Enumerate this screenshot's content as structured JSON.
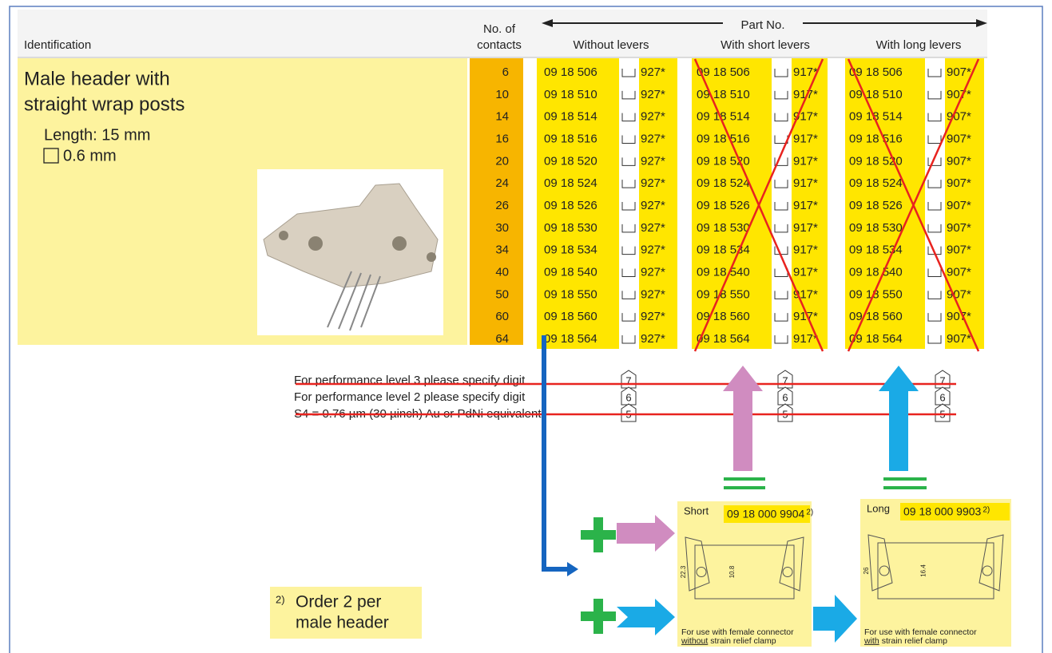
{
  "header": {
    "identification": "Identification",
    "contacts_label": [
      "No. of",
      "contacts"
    ],
    "part_no": "Part No.",
    "columns": [
      "Without levers",
      "With short levers",
      "With long levers"
    ]
  },
  "product": {
    "title_lines": [
      "Male header with",
      "straight wrap posts"
    ],
    "length": "Length: 15 mm",
    "wire": "0.6 mm"
  },
  "rows": [
    {
      "contacts": "6",
      "without": [
        "09 18 506",
        "927*"
      ],
      "short": [
        "09 18 506",
        "917*"
      ],
      "long": [
        "09 18 506",
        "907*"
      ]
    },
    {
      "contacts": "10",
      "without": [
        "09 18 510",
        "927*"
      ],
      "short": [
        "09 18 510",
        "917*"
      ],
      "long": [
        "09 18 510",
        "907*"
      ]
    },
    {
      "contacts": "14",
      "without": [
        "09 18 514",
        "927*"
      ],
      "short": [
        "09 18 514",
        "917*"
      ],
      "long": [
        "09 18 514",
        "907*"
      ]
    },
    {
      "contacts": "16",
      "without": [
        "09 18 516",
        "927*"
      ],
      "short": [
        "09 18 516",
        "917*"
      ],
      "long": [
        "09 18 516",
        "907*"
      ]
    },
    {
      "contacts": "20",
      "without": [
        "09 18 520",
        "927*"
      ],
      "short": [
        "09 18 520",
        "917*"
      ],
      "long": [
        "09 18 520",
        "907*"
      ]
    },
    {
      "contacts": "24",
      "without": [
        "09 18 524",
        "927*"
      ],
      "short": [
        "09 18 524",
        "917*"
      ],
      "long": [
        "09 18 524",
        "907*"
      ]
    },
    {
      "contacts": "26",
      "without": [
        "09 18 526",
        "927*"
      ],
      "short": [
        "09 18 526",
        "917*"
      ],
      "long": [
        "09 18 526",
        "907*"
      ]
    },
    {
      "contacts": "30",
      "without": [
        "09 18 530",
        "927*"
      ],
      "short": [
        "09 18 530",
        "917*"
      ],
      "long": [
        "09 18 530",
        "907*"
      ]
    },
    {
      "contacts": "34",
      "without": [
        "09 18 534",
        "927*"
      ],
      "short": [
        "09 18 534",
        "917*"
      ],
      "long": [
        "09 18 534",
        "907*"
      ]
    },
    {
      "contacts": "40",
      "without": [
        "09 18 540",
        "927*"
      ],
      "short": [
        "09 18 540",
        "917*"
      ],
      "long": [
        "09 18 540",
        "907*"
      ]
    },
    {
      "contacts": "50",
      "without": [
        "09 18 550",
        "927*"
      ],
      "short": [
        "09 18 550",
        "917*"
      ],
      "long": [
        "09 18 550",
        "907*"
      ]
    },
    {
      "contacts": "60",
      "without": [
        "09 18 560",
        "927*"
      ],
      "short": [
        "09 18 560",
        "917*"
      ],
      "long": [
        "09 18 560",
        "907*"
      ]
    },
    {
      "contacts": "64",
      "without": [
        "09 18 564",
        "927*"
      ],
      "short": [
        "09 18 564",
        "917*"
      ],
      "long": [
        "09 18 564",
        "907*"
      ]
    }
  ],
  "specs": [
    {
      "text": "For performance level 3 please specify digit",
      "digit": "7"
    },
    {
      "text": "For performance level 2 please specify digit",
      "digit": "6"
    },
    {
      "text": "S4 = 0.76 µm (30 µinch) Au or PdNi equivalent",
      "digit": "5"
    }
  ],
  "accessories": {
    "short": {
      "label": "Short",
      "part": "09 18 000 9904",
      "note": "2)",
      "dims": [
        "22.3",
        "10.8"
      ],
      "caption": "For use with female connector",
      "emphasis": "without",
      "caption_end": "strain relief clamp"
    },
    "long": {
      "label": "Long",
      "part": "09 18 000 9903",
      "note": "2)",
      "dims": [
        "26",
        "16.4"
      ],
      "caption": "For use with female connector",
      "emphasis": "with",
      "caption_end": "strain relief clamp"
    }
  },
  "footnote": {
    "marker": "2)",
    "lines": [
      "Order 2 per",
      "male header"
    ]
  }
}
